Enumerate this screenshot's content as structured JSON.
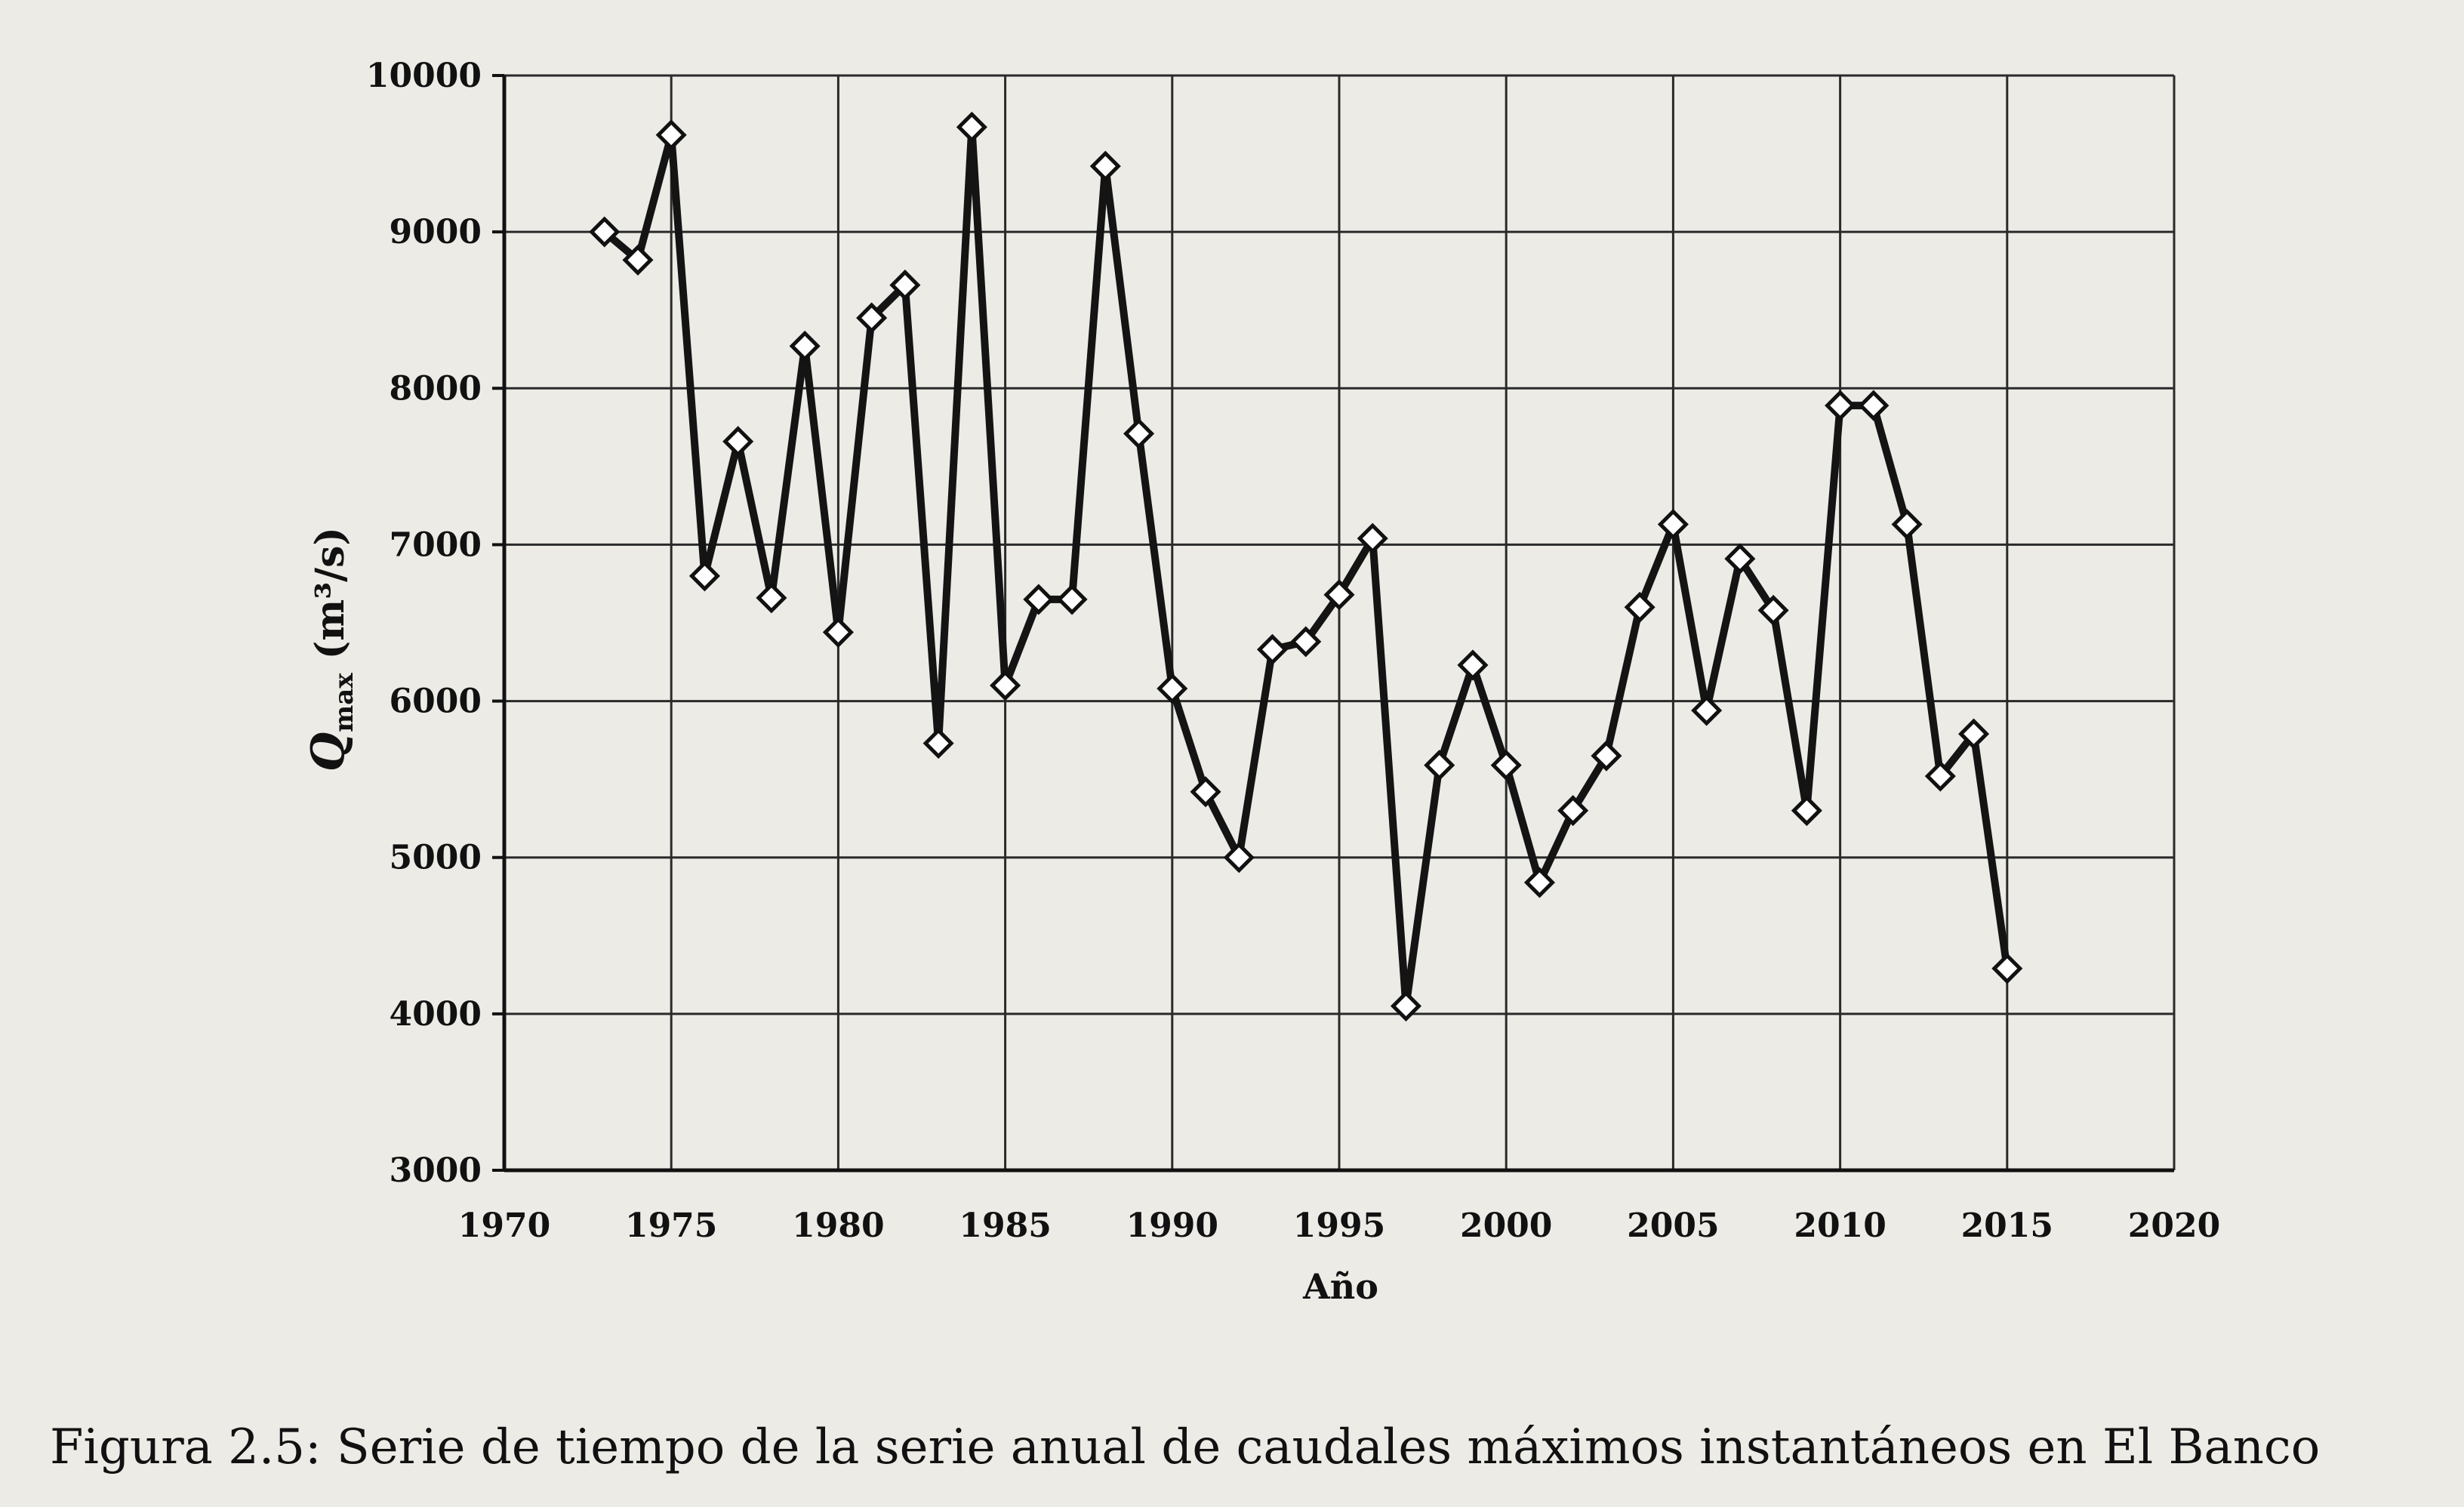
{
  "chart_data": {
    "type": "line",
    "xlabel": "Año",
    "ylabel": "Q",
    "ylabel_sub": "max",
    "ylabel_unit": " (m³/s)",
    "xlim": [
      1970,
      2020
    ],
    "ylim": [
      3000,
      10000
    ],
    "xticks": [
      "1970",
      "1975",
      "1980",
      "1985",
      "1990",
      "1995",
      "2000",
      "2005",
      "2010",
      "2015",
      "2020"
    ],
    "yticks": [
      "10000",
      "9000",
      "8000",
      "7000",
      "6000",
      "5000",
      "4000",
      "3000"
    ],
    "grid": true,
    "marker": "diamond",
    "series": [
      {
        "x": [
          1973,
          1974,
          1975,
          1976,
          1977,
          1978,
          1979,
          1980,
          1981,
          1982,
          1983,
          1984,
          1985,
          1986,
          1987,
          1988,
          1989,
          1990,
          1991,
          1992,
          1993,
          1994,
          1995,
          1996,
          1997,
          1998,
          1999,
          2000,
          2001,
          2002,
          2003,
          2004,
          2005,
          2006,
          2007,
          2008,
          2009,
          2010,
          2011,
          2012,
          2013,
          2014,
          2015
        ],
        "values": [
          9000,
          8820,
          9620,
          6800,
          7660,
          6660,
          8270,
          6440,
          8450,
          8660,
          5730,
          9670,
          6100,
          6650,
          6650,
          9420,
          7710,
          6080,
          5420,
          5000,
          6330,
          6380,
          6680,
          7040,
          4050,
          5590,
          6230,
          5590,
          4840,
          5300,
          5650,
          6600,
          7130,
          5940,
          6910,
          6580,
          5300,
          7890,
          7890,
          7130,
          5520,
          5790,
          4290
        ]
      }
    ]
  },
  "caption": {
    "label": "Figura 2.5:",
    "text": " Serie de tiempo de la serie anual de caudales máximos instantáneos en El Banco"
  }
}
